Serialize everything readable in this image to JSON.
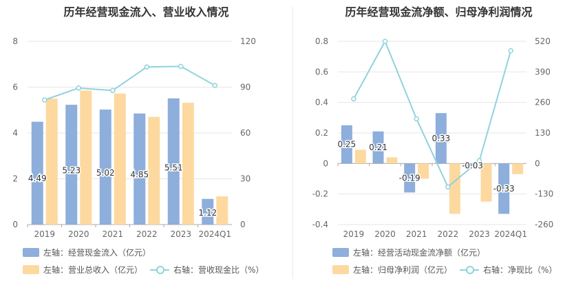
{
  "chart_data": [
    {
      "type": "bar",
      "title": "历年经营现金流入、营业收入情况",
      "categories": [
        "2019",
        "2020",
        "2021",
        "2022",
        "2023",
        "2024Q1"
      ],
      "series": [
        {
          "name": "左轴：经营现金流入（亿元）",
          "axis": "left",
          "kind": "bar",
          "color": "#8eaedb",
          "values": [
            4.49,
            5.23,
            5.02,
            4.85,
            5.51,
            1.12
          ],
          "labels": [
            "4.49",
            "5.23",
            "5.02",
            "4.85",
            "5.51",
            "1.12"
          ]
        },
        {
          "name": "左轴：营业总收入（亿元）",
          "axis": "left",
          "kind": "bar",
          "color": "#fdd9a0",
          "values": [
            5.5,
            5.85,
            5.72,
            4.7,
            5.32,
            1.23
          ]
        },
        {
          "name": "右轴：营收现金比（%）",
          "axis": "right",
          "kind": "line",
          "color": "#8fd3db",
          "values": [
            81.6,
            89.4,
            87.8,
            103.2,
            103.6,
            91.1
          ]
        }
      ],
      "left_axis": {
        "min": 0,
        "max": 8,
        "ticks": [
          "0",
          "2",
          "4",
          "6",
          "8"
        ]
      },
      "right_axis": {
        "min": 0,
        "max": 120,
        "ticks": [
          "0",
          "30",
          "60",
          "90",
          "120"
        ]
      },
      "grid": true,
      "legend_position": "bottom-left"
    },
    {
      "type": "bar",
      "title": "历年经营现金流净额、归母净利润情况",
      "categories": [
        "2019",
        "2020",
        "2021",
        "2022",
        "2023",
        "2024Q1"
      ],
      "series": [
        {
          "name": "左轴：经营活动现金流净额（亿元）",
          "axis": "left",
          "kind": "bar",
          "color": "#8eaedb",
          "values": [
            0.25,
            0.21,
            -0.19,
            0.33,
            -0.03,
            -0.33
          ],
          "labels": [
            "0.25",
            "0.21",
            "-0.19",
            "0.33",
            "-0.03",
            "-0.33"
          ]
        },
        {
          "name": "左轴：归母净利润（亿元）",
          "axis": "left",
          "kind": "bar",
          "color": "#fdd9a0",
          "values": [
            0.09,
            0.04,
            -0.1,
            -0.33,
            -0.25,
            -0.07
          ]
        },
        {
          "name": "右轴：净现比（%）",
          "axis": "right",
          "kind": "line",
          "color": "#8fd3db",
          "values": [
            275,
            520,
            190,
            -100,
            12,
            480
          ]
        }
      ],
      "left_axis": {
        "min": -0.4,
        "max": 0.8,
        "ticks": [
          "-0.4",
          "-0.2",
          "0",
          "0.2",
          "0.4",
          "0.6",
          "0.8"
        ]
      },
      "right_axis": {
        "min": -260,
        "max": 520,
        "ticks": [
          "-260",
          "-130",
          "0",
          "130",
          "260",
          "390",
          "520"
        ]
      },
      "grid": true,
      "legend_position": "bottom-left"
    }
  ]
}
